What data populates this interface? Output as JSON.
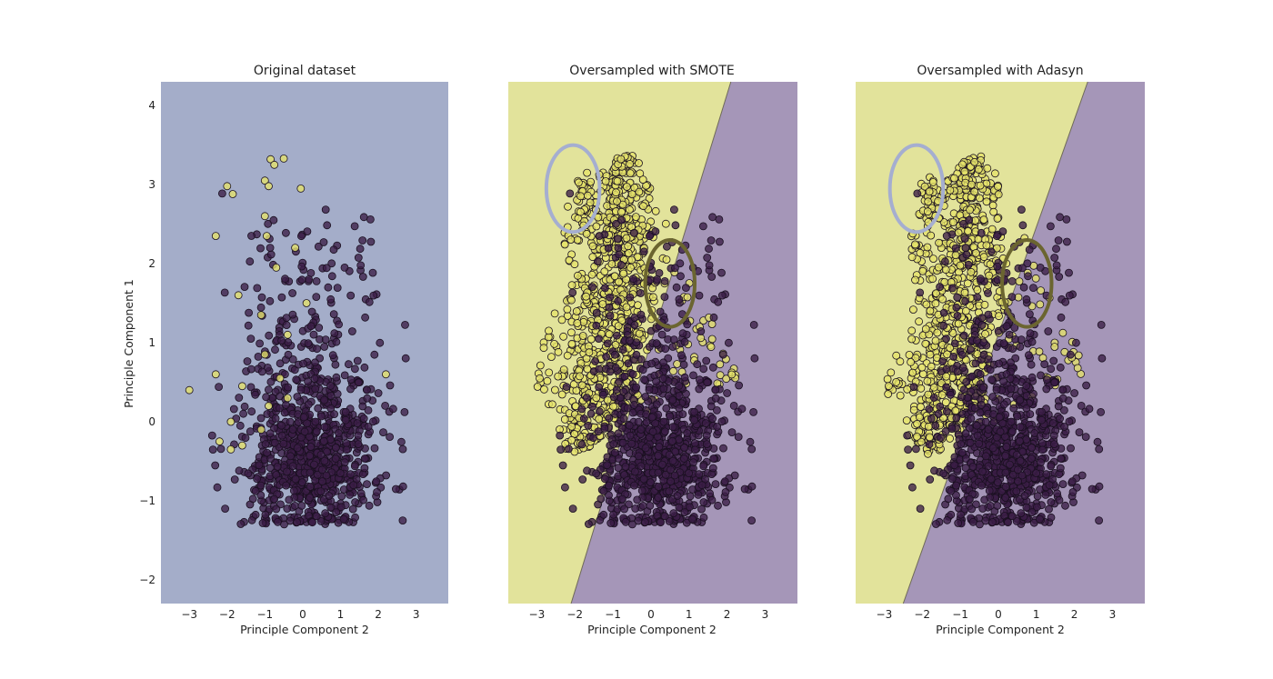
{
  "colors": {
    "majority_class": "#3b1e46",
    "minority_class": "#e6e36a",
    "region_single": "#a4adc9",
    "region_minority": "#e2e39b",
    "region_majority": "#a596b8",
    "circle_light": "#a5aed0",
    "circle_dark": "#6b6530"
  },
  "chart_data": [
    {
      "type": "scatter",
      "title": "Original dataset",
      "xlabel": "Principle Component 2",
      "ylabel": "Principle Component 1",
      "xlim": [
        -3.75,
        3.85
      ],
      "ylim": [
        -2.3,
        4.3
      ],
      "xticks": [
        "−3",
        "−2",
        "−1",
        "0",
        "1",
        "2",
        "3"
      ],
      "yticks": [
        "−2",
        "−1",
        "0",
        "1",
        "2",
        "3",
        "4"
      ],
      "background": "single region",
      "series": [
        {
          "class": "majority",
          "count_shown": "approx. 1000 points",
          "center": [
            0.2,
            -0.55
          ],
          "spread": [
            0.85,
            0.45
          ]
        },
        {
          "class": "minority",
          "points": [
            [
              -0.85,
              3.32
            ],
            [
              -0.75,
              3.25
            ],
            [
              -0.5,
              3.33
            ],
            [
              -2.0,
              2.98
            ],
            [
              -1.85,
              2.88
            ],
            [
              -1.0,
              3.05
            ],
            [
              -0.9,
              2.98
            ],
            [
              -0.05,
              2.95
            ],
            [
              -1.0,
              2.6
            ],
            [
              -2.3,
              2.35
            ],
            [
              -0.95,
              2.35
            ],
            [
              -0.2,
              2.2
            ],
            [
              -0.7,
              1.95
            ],
            [
              -1.7,
              1.6
            ],
            [
              0.1,
              1.5
            ],
            [
              -1.1,
              1.35
            ],
            [
              -2.3,
              0.6
            ],
            [
              -3.0,
              0.4
            ],
            [
              -1.0,
              0.85
            ],
            [
              -0.4,
              1.1
            ],
            [
              -0.6,
              0.55
            ],
            [
              -1.6,
              0.45
            ],
            [
              -0.9,
              0.2
            ],
            [
              -1.9,
              0.0
            ],
            [
              -2.2,
              -0.25
            ],
            [
              -1.6,
              -0.3
            ],
            [
              -0.4,
              0.3
            ],
            [
              2.2,
              0.6
            ],
            [
              -1.1,
              -0.1
            ],
            [
              -1.9,
              -0.35
            ]
          ]
        }
      ]
    },
    {
      "type": "scatter",
      "title": "Oversampled with SMOTE",
      "xlabel": "Principle Component 2",
      "ylabel": "",
      "xlim": [
        -3.75,
        3.85
      ],
      "ylim": [
        -2.3,
        4.3
      ],
      "xticks": [
        "−3",
        "−2",
        "−1",
        "0",
        "1",
        "2",
        "3"
      ],
      "background": "linear decision boundary: minority (left) / majority (right)",
      "boundary": [
        [
          -2.1,
          -2.3
        ],
        [
          2.1,
          4.3
        ]
      ],
      "annotations": [
        "light ellipse around upper-left minority cluster",
        "dark ellipse around minority points near boundary"
      ],
      "ellipses": [
        {
          "center": [
            -2.05,
            2.95
          ],
          "radii": [
            0.7,
            0.55
          ],
          "color": "light"
        },
        {
          "center": [
            0.5,
            1.75
          ],
          "radii": [
            0.65,
            0.55
          ],
          "color": "dark"
        }
      ],
      "series": [
        {
          "class": "majority",
          "count_shown": "approx. 1000 points",
          "center": [
            0.2,
            -0.55
          ],
          "spread": [
            0.85,
            0.45
          ]
        },
        {
          "class": "minority (synthetic)",
          "count_shown": "approx. 1000 points",
          "generated_between": "original minority samples"
        }
      ]
    },
    {
      "type": "scatter",
      "title": "Oversampled with Adasyn",
      "xlabel": "Principle Component 2",
      "ylabel": "",
      "xlim": [
        -3.75,
        3.85
      ],
      "ylim": [
        -2.3,
        4.3
      ],
      "xticks": [
        "−3",
        "−2",
        "−1",
        "0",
        "1",
        "2",
        "3"
      ],
      "background": "linear decision boundary: minority (left) / majority (right)",
      "boundary": [
        [
          -2.5,
          -2.3
        ],
        [
          2.35,
          4.3
        ]
      ],
      "annotations": [
        "light ellipse around upper-left minority cluster",
        "dark ellipse around minority points near boundary"
      ],
      "ellipses": [
        {
          "center": [
            -2.15,
            2.95
          ],
          "radii": [
            0.7,
            0.55
          ],
          "color": "light"
        },
        {
          "center": [
            0.75,
            1.75
          ],
          "radii": [
            0.65,
            0.55
          ],
          "color": "dark"
        }
      ],
      "series": [
        {
          "class": "majority",
          "count_shown": "approx. 1000 points",
          "center": [
            0.2,
            -0.55
          ],
          "spread": [
            0.85,
            0.45
          ]
        },
        {
          "class": "minority (synthetic)",
          "count_shown": "approx. 1000 points",
          "generated_between": "original minority samples"
        }
      ]
    }
  ]
}
